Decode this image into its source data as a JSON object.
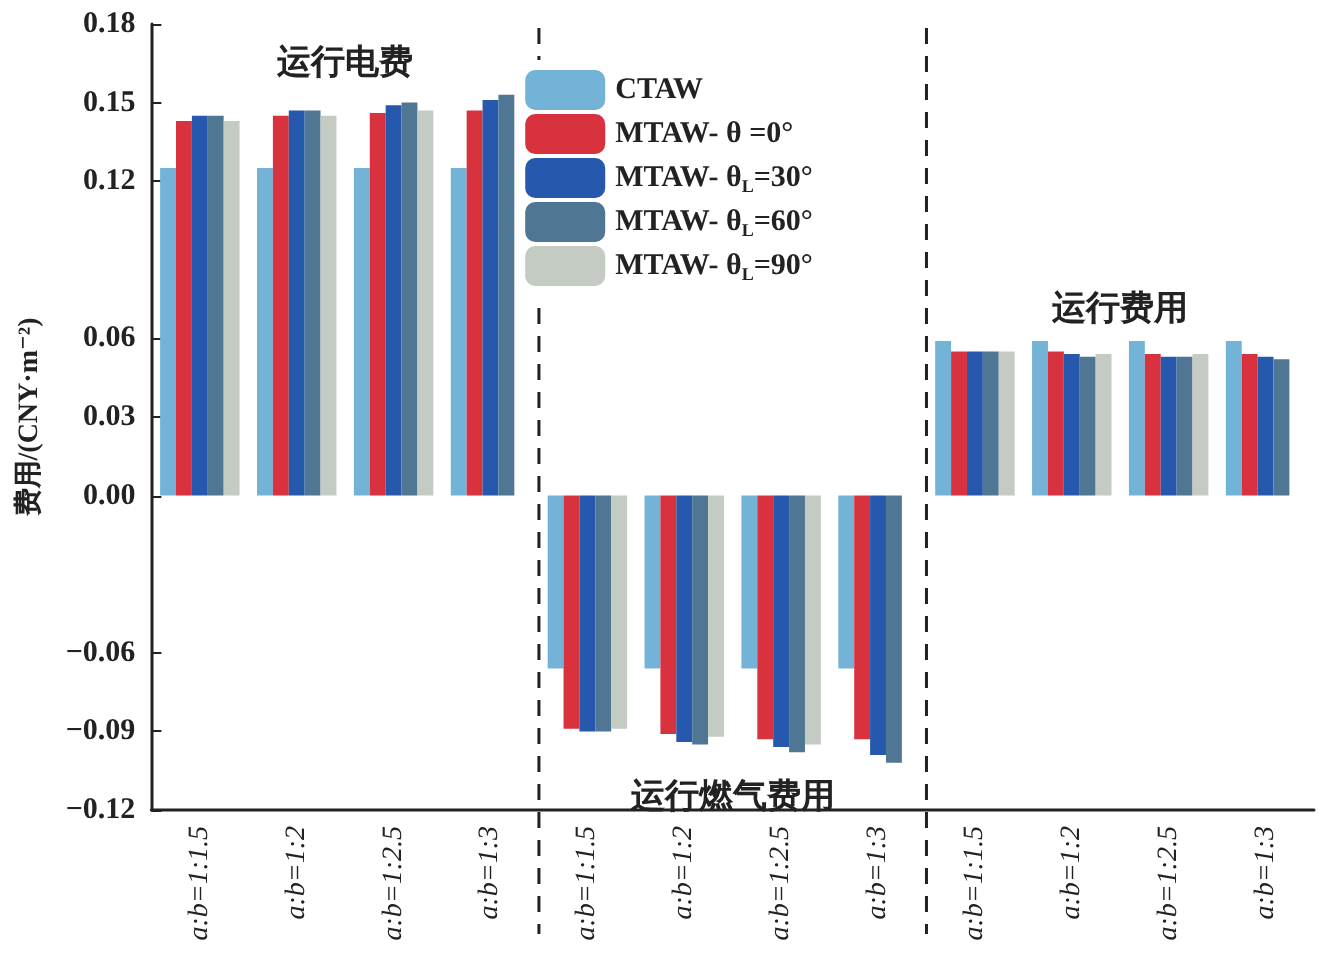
{
  "chart_data": {
    "type": "bar",
    "ylabel": "费用/(CNY·m⁻²)",
    "categories": [
      "a:b=1:1.5",
      "a:b=1:2",
      "a:b=1:2.5",
      "a:b=1:3",
      "a:b=1:1.5",
      "a:b=1:2",
      "a:b=1:2.5",
      "a:b=1:3",
      "a:b=1:1.5",
      "a:b=1:2",
      "a:b=1:2.5",
      "a:b=1:3"
    ],
    "series": [
      {
        "name": "CTAW",
        "color": "#74b3d8",
        "values": [
          0.125,
          0.125,
          0.125,
          0.125,
          -0.066,
          -0.066,
          -0.066,
          -0.066,
          0.059,
          0.059,
          0.059,
          0.059
        ]
      },
      {
        "name": "MTAW- θ =0°",
        "color": "#d9323f",
        "values": [
          0.143,
          0.145,
          0.146,
          0.147,
          -0.089,
          -0.091,
          -0.093,
          -0.093,
          0.055,
          0.055,
          0.054,
          0.054
        ]
      },
      {
        "name": "MTAW- θ$_{L}$=30°",
        "color": "#2659ad",
        "values": [
          0.145,
          0.147,
          0.149,
          0.151,
          -0.09,
          -0.094,
          -0.096,
          -0.099,
          0.055,
          0.054,
          0.053,
          0.053
        ]
      },
      {
        "name": "MTAW- θ$_{L}$=60°",
        "color": "#4f7693",
        "values": [
          0.145,
          0.147,
          0.15,
          0.153,
          -0.09,
          -0.095,
          -0.098,
          -0.102,
          0.055,
          0.053,
          0.053,
          0.052
        ]
      },
      {
        "name": "MTAW- θ$_{L}$=90°",
        "color": "#c3cbc2",
        "values": [
          0.143,
          0.145,
          0.147,
          null,
          -0.089,
          -0.092,
          -0.095,
          null,
          0.055,
          0.054,
          0.054,
          null
        ]
      }
    ],
    "ylim": [
      -0.12,
      0.18
    ],
    "yticks": [
      {
        "value": -0.12,
        "label": "−0.12"
      },
      {
        "value": -0.09,
        "label": "−0.09"
      },
      {
        "value": -0.06,
        "label": "−0.06"
      },
      {
        "value": 0,
        "label": "0.00"
      },
      0.03,
      0.06,
      0.12,
      0.15,
      0.18
    ],
    "annotations": [
      "运行电费",
      "运行燃气费用",
      "运行费用"
    ],
    "legend": "top"
  }
}
